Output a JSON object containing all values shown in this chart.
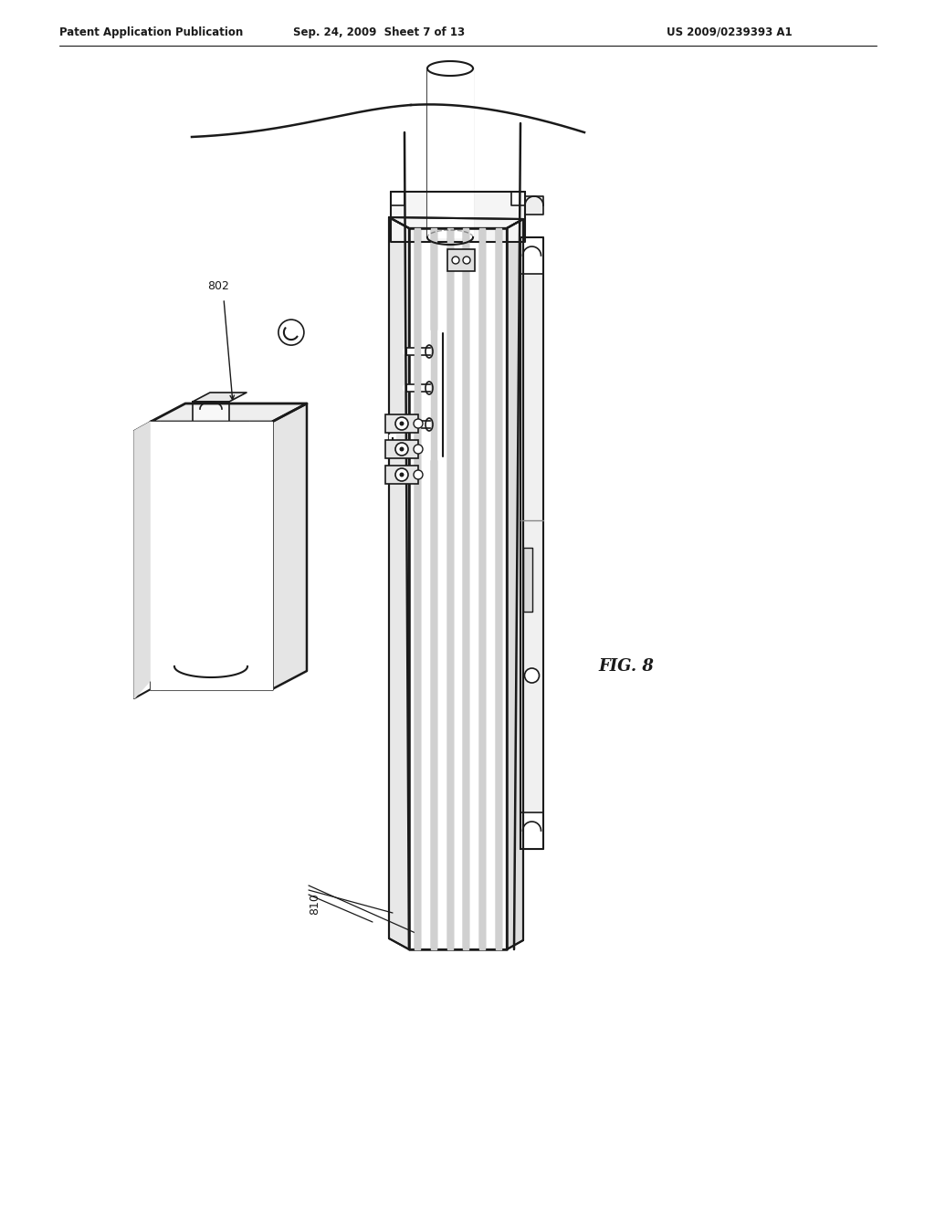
{
  "bg_color": "#ffffff",
  "line_color": "#1a1a1a",
  "gray_color": "#888888",
  "light_gray": "#cccccc",
  "mid_gray": "#aaaaaa",
  "dark_gray": "#555555",
  "header_left": "Patent Application Publication",
  "header_center": "Sep. 24, 2009  Sheet 7 of 13",
  "header_right": "US 2009/0239393 A1",
  "label_802": "802",
  "label_810": "810",
  "fig_label": "FIG. 8"
}
